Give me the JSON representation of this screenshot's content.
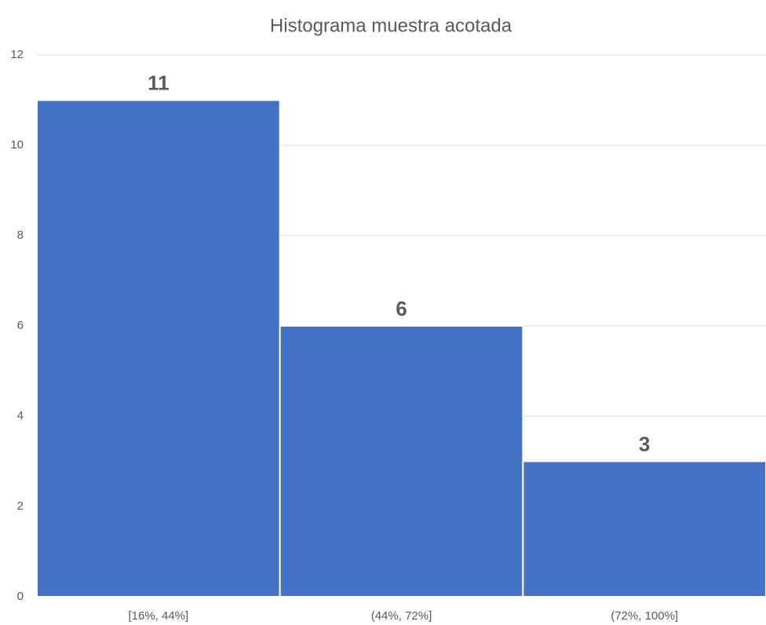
{
  "chart_data": {
    "type": "bar",
    "title": "Histograma muestra acotada",
    "categories": [
      "[16%, 44%]",
      "(44%, 72%]",
      "(72%, 100%]"
    ],
    "values": [
      11,
      6,
      3
    ],
    "color": "#4472c4",
    "ylim": [
      0,
      12
    ],
    "yticks": [
      0,
      2,
      4,
      6,
      8,
      10,
      12
    ],
    "grid": true
  }
}
